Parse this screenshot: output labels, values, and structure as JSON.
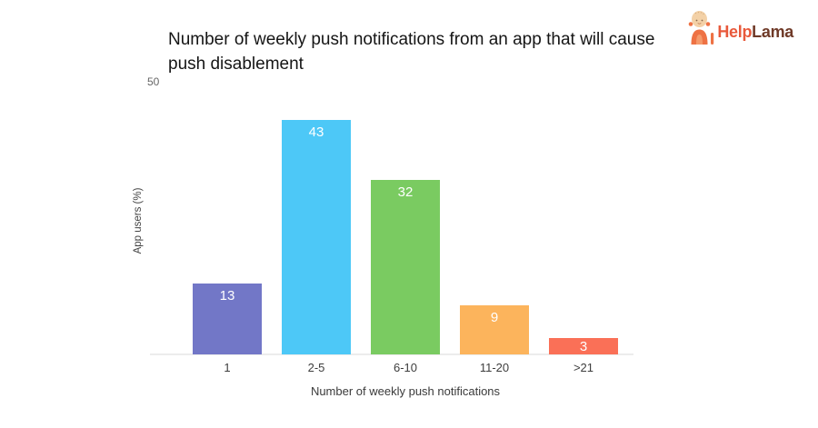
{
  "logo": {
    "help": "Help",
    "lama": "Lama",
    "help_color": "#E8593B",
    "lama_color": "#6F3A28"
  },
  "chart_data": {
    "type": "bar",
    "title": "Number of weekly push notifications from an app that will cause push disablement",
    "categories": [
      "1",
      "2-5",
      "6-10",
      "11-20",
      ">21"
    ],
    "values": [
      13,
      43,
      32,
      9,
      3
    ],
    "bar_colors": [
      "#7277C7",
      "#4DC8F7",
      "#7ACB61",
      "#FCB45C",
      "#FA7057"
    ],
    "value_label_color": "#FFFFFF",
    "xlabel": "Number of weekly push notifications",
    "ylabel": "App users (%)",
    "ylim": [
      0,
      50
    ],
    "y_axis_visible_tick": "50",
    "grid": false,
    "legend": false,
    "axis_line_color": "#ECECEC"
  }
}
